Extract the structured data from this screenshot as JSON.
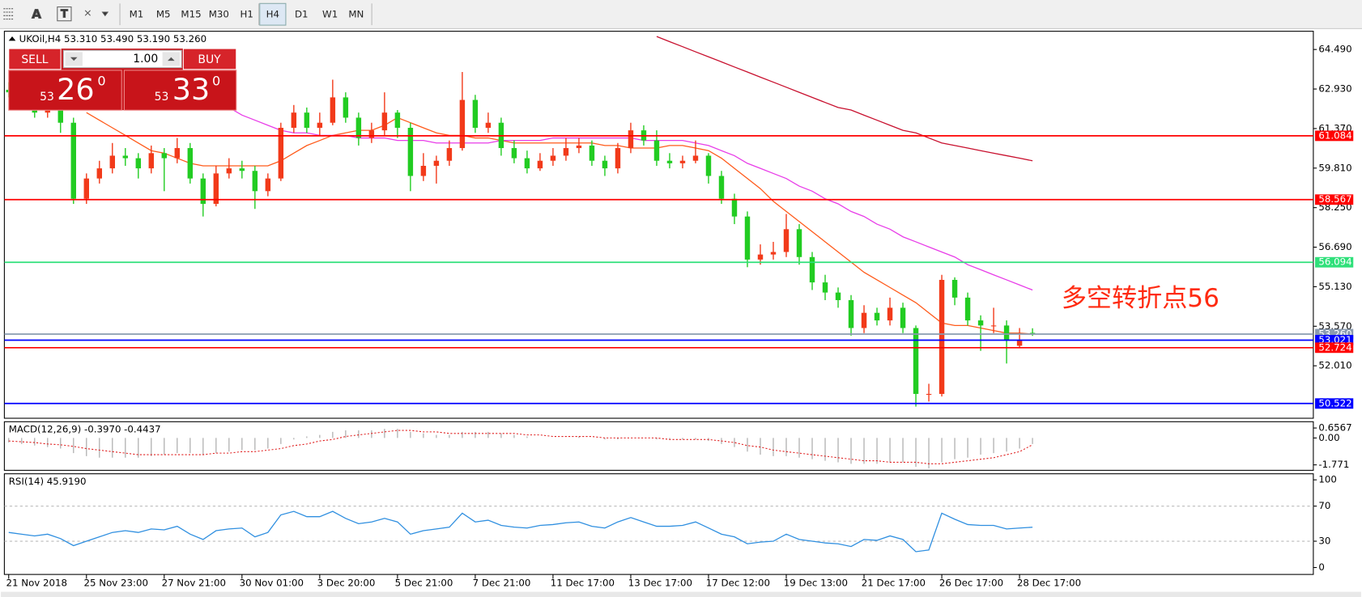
{
  "toolbar": {
    "timeframes": [
      "M1",
      "M5",
      "M15",
      "M30",
      "H1",
      "H4",
      "D1",
      "W1",
      "MN"
    ],
    "active": "H4"
  },
  "trade_panel": {
    "sell": "SELL",
    "buy": "BUY",
    "lots": "1.00",
    "sell_price": {
      "small": "53",
      "big": "26",
      "sup": "0"
    },
    "buy_price": {
      "small": "53",
      "big": "33",
      "sup": "0"
    }
  },
  "chart_data": [
    {
      "type": "candlestick",
      "title": "UKOil,H4  53.310 53.490 53.190 53.260",
      "up_color": "#f23a1a",
      "down_color": "#22cc22",
      "categories": [
        "21 Nov 2018",
        null,
        null,
        null,
        null,
        null,
        "25 Nov 23:00",
        null,
        null,
        null,
        null,
        null,
        "27 Nov 21:00",
        null,
        null,
        null,
        null,
        null,
        "30 Nov 01:00",
        null,
        null,
        null,
        null,
        null,
        "3 Dec 20:00",
        null,
        null,
        null,
        null,
        null,
        "5 Dec 21:00",
        null,
        null,
        null,
        null,
        null,
        "7 Dec 21:00",
        null,
        null,
        null,
        null,
        null,
        "11 Dec 17:00",
        null,
        null,
        null,
        null,
        null,
        "13 Dec 17:00",
        null,
        null,
        null,
        null,
        null,
        "17 Dec 12:00",
        null,
        null,
        null,
        null,
        null,
        "19 Dec 13:00",
        null,
        null,
        null,
        null,
        null,
        "21 Dec 17:00",
        null,
        null,
        null,
        null,
        null,
        "26 Dec 17:00",
        null,
        null,
        null,
        null,
        null,
        "28 Dec 17:00",
        null
      ],
      "candles": [
        [
          62.9,
          63.2,
          62.6,
          62.8
        ],
        [
          62.8,
          63.0,
          62.3,
          62.5
        ],
        [
          62.5,
          62.7,
          61.8,
          62.0
        ],
        [
          62.0,
          62.5,
          61.8,
          62.2
        ],
        [
          62.2,
          62.4,
          61.2,
          61.6
        ],
        [
          61.6,
          61.8,
          58.4,
          58.6
        ],
        [
          58.6,
          59.6,
          58.4,
          59.4
        ],
        [
          59.4,
          60.1,
          59.2,
          59.8
        ],
        [
          59.8,
          60.8,
          59.6,
          60.3
        ],
        [
          60.3,
          60.6,
          59.9,
          60.2
        ],
        [
          60.2,
          60.4,
          59.4,
          59.8
        ],
        [
          59.8,
          60.7,
          59.6,
          60.4
        ],
        [
          60.4,
          60.6,
          58.9,
          60.2
        ],
        [
          60.2,
          61.0,
          60.0,
          60.6
        ],
        [
          60.6,
          60.8,
          59.2,
          59.4
        ],
        [
          59.4,
          59.6,
          57.9,
          58.4
        ],
        [
          58.4,
          59.9,
          58.3,
          59.6
        ],
        [
          59.6,
          60.2,
          59.4,
          59.8
        ],
        [
          59.8,
          60.1,
          59.4,
          59.7
        ],
        [
          59.7,
          59.9,
          58.2,
          58.9
        ],
        [
          58.9,
          59.6,
          58.7,
          59.4
        ],
        [
          59.4,
          61.6,
          59.3,
          61.4
        ],
        [
          61.4,
          62.3,
          61.2,
          62.0
        ],
        [
          62.0,
          62.2,
          61.2,
          61.4
        ],
        [
          61.4,
          62.0,
          61.1,
          61.6
        ],
        [
          61.6,
          63.3,
          61.5,
          62.6
        ],
        [
          62.6,
          62.8,
          61.6,
          61.8
        ],
        [
          61.8,
          62.0,
          60.7,
          61.0
        ],
        [
          61.0,
          61.6,
          60.8,
          61.3
        ],
        [
          61.3,
          62.8,
          61.1,
          62.0
        ],
        [
          62.0,
          62.1,
          61.0,
          61.4
        ],
        [
          61.4,
          61.6,
          58.9,
          59.5
        ],
        [
          59.5,
          60.4,
          59.3,
          59.9
        ],
        [
          59.9,
          60.3,
          59.2,
          60.1
        ],
        [
          60.1,
          60.9,
          59.9,
          60.6
        ],
        [
          60.6,
          63.6,
          60.5,
          62.5
        ],
        [
          62.5,
          62.7,
          61.2,
          61.4
        ],
        [
          61.4,
          62.0,
          61.2,
          61.6
        ],
        [
          61.6,
          61.8,
          60.3,
          60.6
        ],
        [
          60.6,
          60.9,
          60.0,
          60.2
        ],
        [
          60.2,
          60.5,
          59.6,
          59.8
        ],
        [
          59.8,
          60.4,
          59.7,
          60.1
        ],
        [
          60.1,
          60.6,
          59.9,
          60.3
        ],
        [
          60.3,
          61.0,
          60.1,
          60.6
        ],
        [
          60.6,
          61.0,
          60.4,
          60.7
        ],
        [
          60.7,
          60.9,
          59.9,
          60.1
        ],
        [
          60.1,
          60.3,
          59.5,
          59.8
        ],
        [
          59.8,
          60.8,
          59.6,
          60.6
        ],
        [
          60.6,
          61.6,
          60.4,
          61.3
        ],
        [
          61.3,
          61.5,
          60.7,
          60.9
        ],
        [
          60.9,
          61.3,
          59.9,
          60.1
        ],
        [
          60.1,
          60.4,
          59.8,
          60.0
        ],
        [
          60.0,
          60.3,
          59.8,
          60.1
        ],
        [
          60.1,
          60.9,
          60.0,
          60.3
        ],
        [
          60.3,
          60.4,
          59.2,
          59.5
        ],
        [
          59.5,
          59.7,
          58.4,
          58.6
        ],
        [
          58.6,
          58.8,
          57.6,
          57.9
        ],
        [
          57.9,
          58.1,
          55.9,
          56.2
        ],
        [
          56.2,
          56.8,
          56.0,
          56.4
        ],
        [
          56.4,
          56.9,
          56.2,
          56.5
        ],
        [
          56.5,
          58.0,
          56.3,
          57.4
        ],
        [
          57.4,
          57.6,
          56.0,
          56.3
        ],
        [
          56.3,
          56.5,
          55.0,
          55.3
        ],
        [
          55.3,
          55.6,
          54.6,
          54.9
        ],
        [
          54.9,
          55.1,
          54.3,
          54.6
        ],
        [
          54.6,
          54.8,
          53.2,
          53.5
        ],
        [
          53.5,
          54.4,
          53.3,
          54.1
        ],
        [
          54.1,
          54.3,
          53.6,
          53.8
        ],
        [
          53.8,
          54.7,
          53.6,
          54.3
        ],
        [
          54.3,
          54.5,
          53.3,
          53.5
        ],
        [
          53.5,
          53.6,
          50.4,
          50.9
        ],
        [
          50.9,
          51.3,
          50.6,
          50.9
        ],
        [
          50.9,
          55.6,
          50.8,
          55.4
        ],
        [
          55.4,
          55.5,
          54.4,
          54.7
        ],
        [
          54.7,
          54.9,
          53.6,
          53.8
        ],
        [
          53.8,
          54.0,
          52.6,
          53.6
        ],
        [
          53.6,
          54.3,
          53.3,
          53.6
        ],
        [
          53.6,
          53.8,
          52.1,
          53.0
        ],
        [
          52.8,
          53.5,
          52.7,
          53.0
        ],
        [
          53.31,
          53.49,
          53.19,
          53.26
        ]
      ],
      "moving_averages": [
        {
          "color": "#ff5a1a",
          "values": [
            null,
            null,
            null,
            null,
            null,
            null,
            62.0,
            61.7,
            61.4,
            61.1,
            60.8,
            60.5,
            60.4,
            60.2,
            60.0,
            59.9,
            59.9,
            59.9,
            59.9,
            59.9,
            59.9,
            60.1,
            60.4,
            60.7,
            60.9,
            61.1,
            61.2,
            61.3,
            61.3,
            61.5,
            61.8,
            61.6,
            61.4,
            61.2,
            61.1,
            61.1,
            61.0,
            61.0,
            60.9,
            60.8,
            60.8,
            60.8,
            60.8,
            60.8,
            60.8,
            60.8,
            60.7,
            60.7,
            60.6,
            60.6,
            60.6,
            60.7,
            60.7,
            60.6,
            60.5,
            60.2,
            59.8,
            59.4,
            59.0,
            58.5,
            58.1,
            57.7,
            57.3,
            56.9,
            56.5,
            56.1,
            55.7,
            55.4,
            55.1,
            54.8,
            54.5,
            54.1,
            53.7,
            53.6,
            53.6,
            53.5,
            53.4,
            53.3,
            53.3,
            53.26
          ]
        },
        {
          "color": "#e83de8",
          "values": [
            null,
            null,
            null,
            null,
            null,
            null,
            null,
            null,
            null,
            null,
            null,
            null,
            null,
            null,
            null,
            null,
            null,
            62.2,
            61.9,
            61.7,
            61.5,
            61.3,
            61.2,
            61.2,
            61.1,
            61.1,
            61.1,
            61.0,
            61.0,
            61.0,
            60.9,
            60.9,
            60.9,
            60.8,
            60.8,
            60.8,
            60.8,
            60.8,
            60.9,
            60.9,
            60.9,
            60.9,
            61.0,
            61.0,
            61.0,
            61.0,
            61.0,
            61.0,
            61.0,
            60.9,
            60.9,
            60.9,
            60.9,
            60.8,
            60.7,
            60.5,
            60.3,
            60.0,
            59.8,
            59.6,
            59.4,
            59.1,
            58.9,
            58.6,
            58.4,
            58.1,
            57.9,
            57.6,
            57.4,
            57.1,
            56.9,
            56.7,
            56.5,
            56.3,
            56.0,
            55.8,
            55.6,
            55.4,
            55.2,
            55.0
          ]
        },
        {
          "color": "#c8102e",
          "values": [
            null,
            null,
            null,
            null,
            null,
            null,
            null,
            null,
            null,
            null,
            null,
            null,
            null,
            null,
            null,
            null,
            null,
            null,
            null,
            null,
            null,
            null,
            null,
            null,
            null,
            null,
            null,
            null,
            null,
            null,
            null,
            null,
            null,
            null,
            null,
            null,
            null,
            null,
            null,
            null,
            null,
            null,
            null,
            null,
            null,
            null,
            null,
            null,
            null,
            null,
            65.0,
            64.8,
            64.6,
            64.4,
            64.2,
            64.0,
            63.8,
            63.6,
            63.4,
            63.2,
            63.0,
            62.8,
            62.6,
            62.4,
            62.2,
            62.1,
            61.9,
            61.7,
            61.5,
            61.3,
            61.2,
            61.0,
            60.8,
            60.7,
            60.6,
            60.5,
            60.4,
            60.3,
            60.2,
            60.1
          ]
        }
      ],
      "hlines": [
        {
          "value": 61.084,
          "color": "#ff0000"
        },
        {
          "value": 58.567,
          "color": "#ff0000"
        },
        {
          "value": 56.094,
          "color": "#2fe07a"
        },
        {
          "value": 53.26,
          "label": "53.260",
          "color": "#8a9bb0"
        },
        {
          "value": 53.021,
          "color": "#0000ff"
        },
        {
          "value": 52.724,
          "color": "#ff0000"
        },
        {
          "value": 50.522,
          "color": "#0000ff"
        }
      ],
      "annotation": "多空转折点56",
      "ylim": [
        49.94,
        65.21
      ],
      "yticks": [
        {
          "value": 52.01,
          "label": "52.010"
        },
        {
          "value": 53.57,
          "label": "53.570"
        },
        {
          "value": 55.13,
          "label": "55.130"
        },
        {
          "value": 56.69,
          "label": "56.690"
        },
        {
          "value": 58.25,
          "label": "58.250"
        },
        {
          "value": 59.81,
          "label": "59.810"
        },
        {
          "value": 61.37,
          "label": "61.370"
        },
        {
          "value": 62.93,
          "label": "62.930"
        },
        {
          "value": 64.49,
          "label": "64.490"
        }
      ]
    },
    {
      "type": "macd",
      "title": "MACD(12,26,9) -0.3970 -0.4437",
      "color": "#b0b0b0",
      "signal_color": "#e02020",
      "values": [
        -0.3,
        -0.4,
        -0.5,
        -0.6,
        -0.7,
        -1.0,
        -1.2,
        -1.3,
        -1.3,
        -1.3,
        -1.3,
        -1.2,
        -1.1,
        -1.0,
        -1.0,
        -1.1,
        -1.0,
        -0.9,
        -0.8,
        -0.8,
        -0.7,
        -0.4,
        -0.1,
        0.1,
        0.2,
        0.4,
        0.5,
        0.5,
        0.5,
        0.6,
        0.6,
        0.4,
        0.3,
        0.2,
        0.2,
        0.4,
        0.4,
        0.4,
        0.3,
        0.2,
        0.1,
        0.0,
        0.0,
        0.0,
        0.1,
        0.0,
        -0.1,
        -0.1,
        0.0,
        0.0,
        -0.1,
        -0.1,
        -0.1,
        -0.1,
        -0.2,
        -0.4,
        -0.6,
        -0.9,
        -1.1,
        -1.2,
        -1.2,
        -1.3,
        -1.4,
        -1.5,
        -1.6,
        -1.7,
        -1.7,
        -1.7,
        -1.6,
        -1.6,
        -1.9,
        -2.0,
        -1.6,
        -1.4,
        -1.3,
        -1.1,
        -1.0,
        -0.9,
        -0.7,
        -0.397
      ],
      "signal": [
        -0.2,
        -0.25,
        -0.3,
        -0.4,
        -0.45,
        -0.55,
        -0.7,
        -0.8,
        -0.9,
        -1.0,
        -1.1,
        -1.1,
        -1.1,
        -1.1,
        -1.1,
        -1.1,
        -1.0,
        -1.0,
        -0.9,
        -0.9,
        -0.8,
        -0.7,
        -0.5,
        -0.4,
        -0.2,
        -0.1,
        0.1,
        0.2,
        0.3,
        0.4,
        0.5,
        0.5,
        0.4,
        0.4,
        0.3,
        0.3,
        0.3,
        0.3,
        0.3,
        0.3,
        0.2,
        0.2,
        0.1,
        0.1,
        0.1,
        0.1,
        0.0,
        0.0,
        0.0,
        0.0,
        0.0,
        -0.1,
        -0.1,
        -0.1,
        -0.1,
        -0.2,
        -0.3,
        -0.5,
        -0.6,
        -0.8,
        -0.9,
        -1.0,
        -1.1,
        -1.2,
        -1.3,
        -1.4,
        -1.5,
        -1.5,
        -1.6,
        -1.6,
        -1.6,
        -1.7,
        -1.7,
        -1.6,
        -1.5,
        -1.4,
        -1.3,
        -1.1,
        -0.9,
        -0.4437
      ],
      "ylim": [
        -2.13,
        1.07
      ],
      "yticks": [
        -1.771,
        {
          "value": 0,
          "label": "0.00"
        },
        0.6567
      ]
    },
    {
      "type": "line",
      "title": "RSI(14) 45.9190",
      "color": "#2f8fe0",
      "values": [
        40,
        38,
        36,
        38,
        33,
        25,
        30,
        35,
        40,
        42,
        40,
        44,
        43,
        47,
        38,
        32,
        42,
        44,
        45,
        35,
        40,
        60,
        64,
        58,
        58,
        64,
        56,
        50,
        52,
        56,
        52,
        38,
        42,
        44,
        46,
        62,
        52,
        54,
        48,
        46,
        45,
        48,
        49,
        51,
        52,
        47,
        45,
        52,
        57,
        52,
        47,
        47,
        48,
        52,
        45,
        38,
        35,
        27,
        29,
        30,
        38,
        32,
        30,
        28,
        27,
        24,
        32,
        31,
        36,
        32,
        18,
        20,
        62,
        55,
        49,
        48,
        48,
        44,
        45,
        45.919
      ],
      "ylim": [
        -7.9,
        106.9
      ],
      "yticks": [
        0,
        30,
        70,
        100
      ],
      "levels": [
        30,
        70
      ]
    }
  ]
}
